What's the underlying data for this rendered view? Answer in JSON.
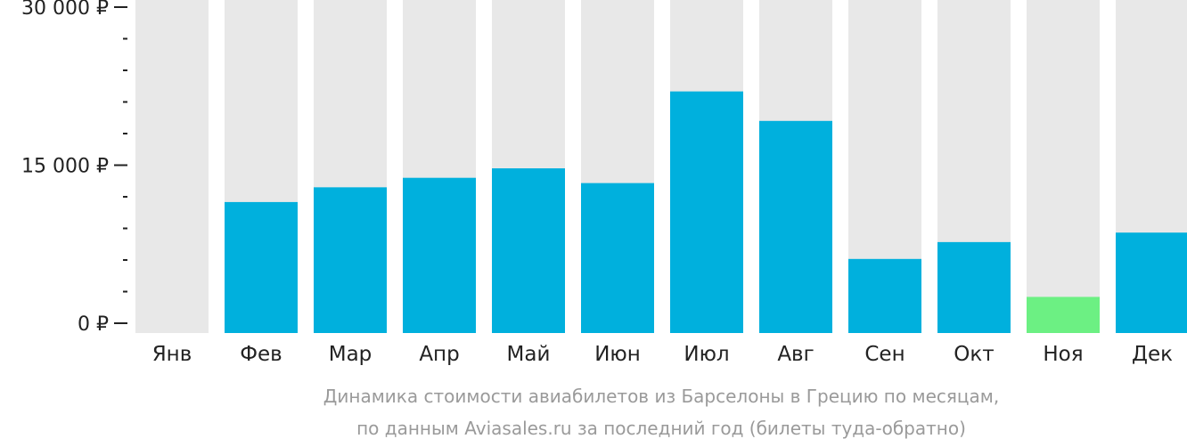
{
  "chart_data": {
    "type": "bar",
    "categories": [
      "Янв",
      "Фев",
      "Мар",
      "Апр",
      "Май",
      "Июн",
      "Июл",
      "Авг",
      "Сен",
      "Окт",
      "Ноя",
      "Дек"
    ],
    "values": [
      null,
      11500,
      12900,
      13800,
      14700,
      13300,
      22000,
      19200,
      6100,
      7700,
      2500,
      8600
    ],
    "ylim": [
      0,
      30000
    ],
    "yticks": [
      0,
      15000,
      30000
    ],
    "ytick_labels": [
      "0 ₽",
      "15 000 ₽",
      "30 000 ₽"
    ],
    "minor_ticks_between_labels": 4,
    "highlight_index": 10,
    "caption_lines": [
      "Динамика стоимости авиабилетов из Барселоны в Грецию по месяцам,",
      "по данным Aviasales.ru за последний год (билеты туда-обратно)"
    ],
    "colors": {
      "bar": "#00b0dd",
      "highlight": "#6cf083",
      "background_column": "#e8e8e8",
      "axis": "#222222",
      "caption": "#9a9a9a"
    },
    "grid": false,
    "legend": "none"
  }
}
